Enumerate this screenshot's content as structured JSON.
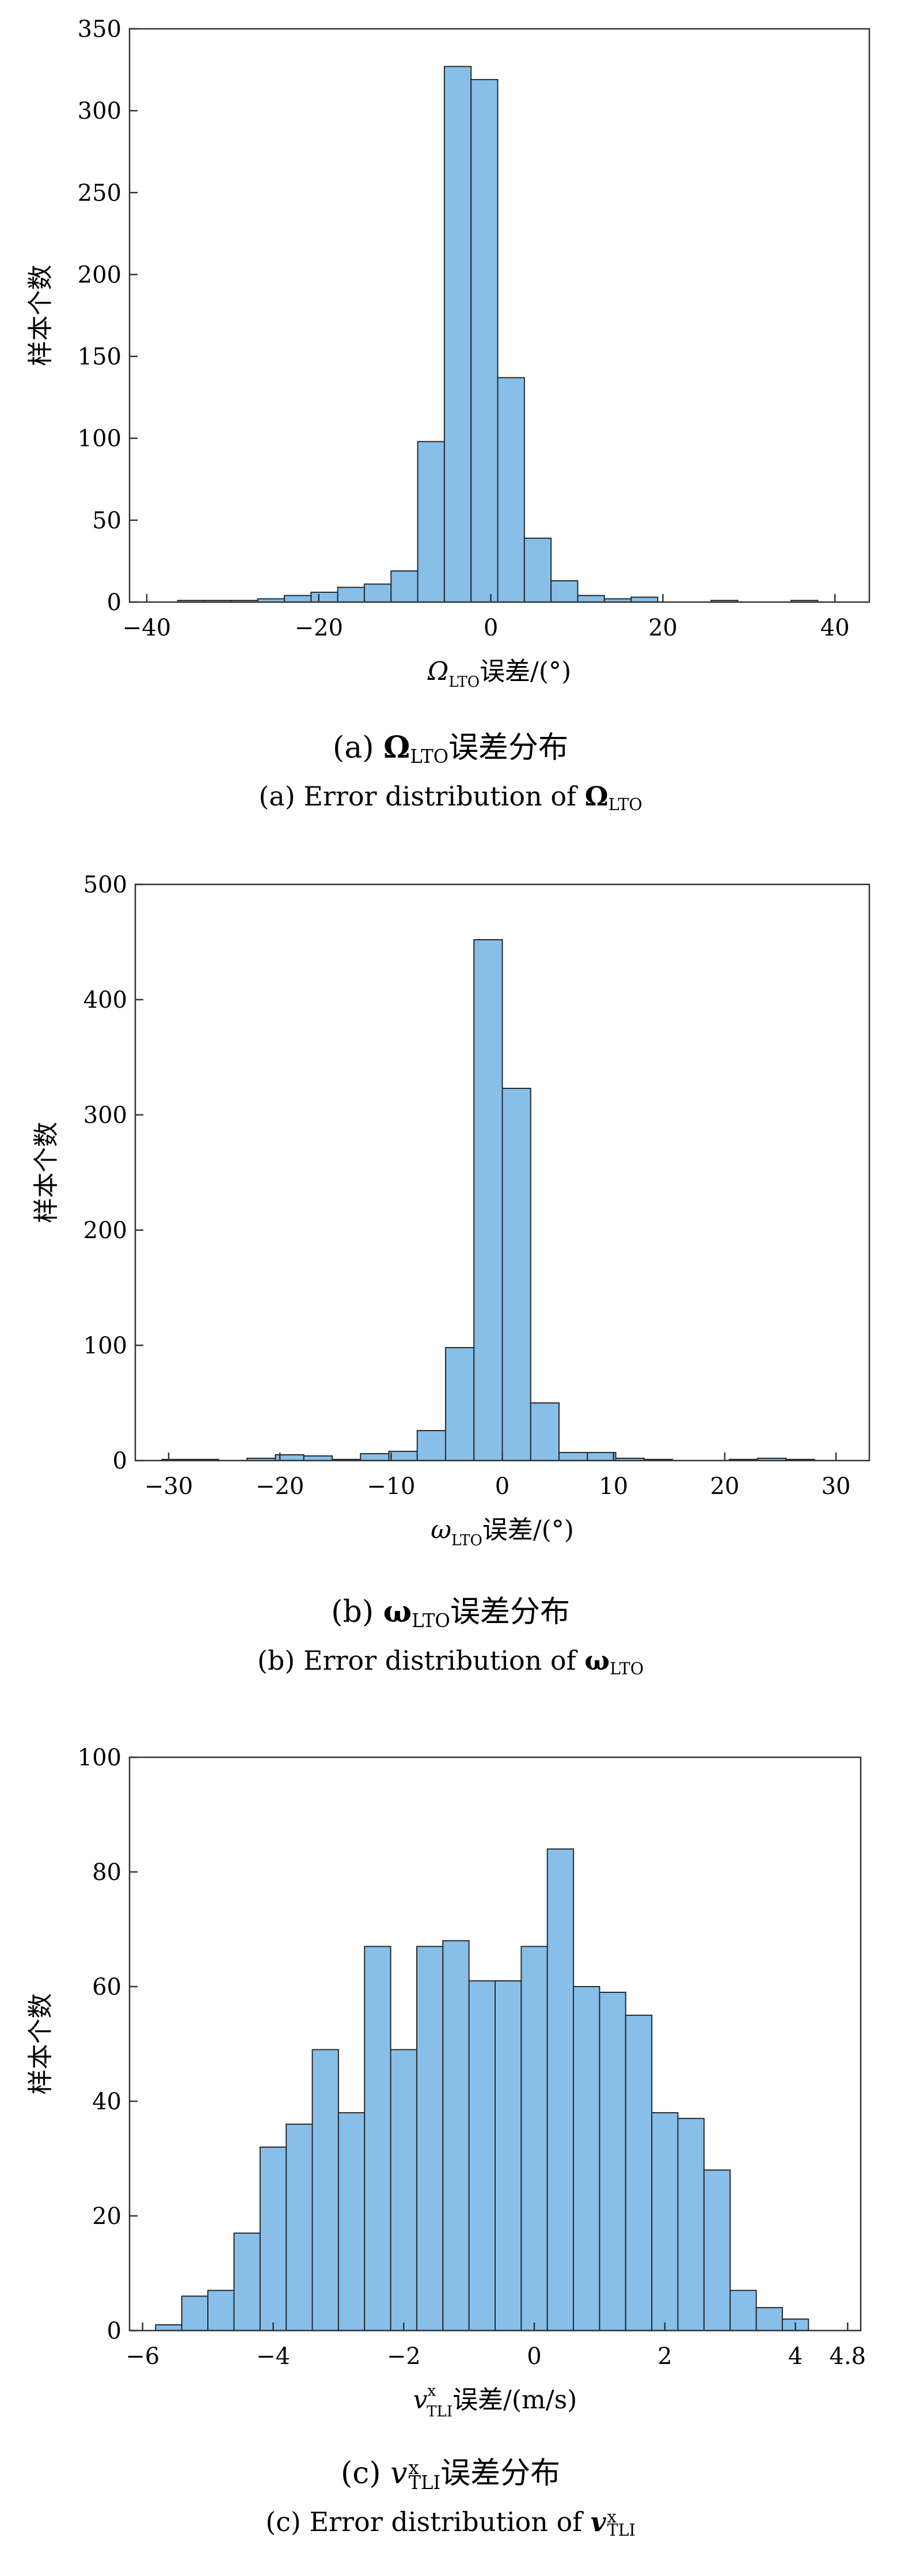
{
  "charts": [
    {
      "caption_zh_prefix": "(a)",
      "caption_zh_symbol": "Ω",
      "caption_zh_sub": "LTO",
      "caption_zh_suffix": "误差分布",
      "caption_en_prefix": "(a) Error distribution of",
      "caption_en_symbol": "Ω",
      "caption_en_sub": "LTO",
      "xlabel_symbol": "Ω",
      "xlabel_sub": "LTO",
      "xlabel_suffix": "误差/(°)",
      "ylabel": "样本个数"
    },
    {
      "caption_zh_prefix": "(b)",
      "caption_zh_symbol": "ω",
      "caption_zh_sub": "LTO",
      "caption_zh_suffix": "误差分布",
      "caption_en_prefix": "(b) Error distribution of",
      "caption_en_symbol": "ω",
      "caption_en_sub": "LTO",
      "xlabel_symbol": "ω",
      "xlabel_sub": "LTO",
      "xlabel_suffix": "误差/(°)",
      "ylabel": "样本个数"
    },
    {
      "caption_zh_prefix": "(c)",
      "caption_zh_symbol": "v",
      "caption_zh_sup": "x",
      "caption_zh_sub": "TLI",
      "caption_zh_suffix": "误差分布",
      "caption_en_prefix": "(c) Error distribution of",
      "caption_en_symbol": "v",
      "caption_en_sup": "x",
      "caption_en_sub": "TLI",
      "xlabel_symbol": "v",
      "xlabel_sup": "x",
      "xlabel_sub": "TLI",
      "xlabel_suffix": "误差/(m/s)",
      "ylabel": "样本个数"
    }
  ],
  "chart_data": [
    {
      "type": "bar",
      "bar_color": "#87bfe9",
      "edge_color": "#2a2a2a",
      "grid": false,
      "xlim": [
        -42,
        44
      ],
      "ylim": [
        0,
        350
      ],
      "xticks": [
        -40,
        -20,
        0,
        20,
        40
      ],
      "xtick_labels": [
        "−40",
        "−20",
        "0",
        "20",
        "40"
      ],
      "yticks": [
        0,
        50,
        100,
        150,
        200,
        250,
        300,
        350
      ],
      "bin_edges": [
        -36.4,
        -33.3,
        -30.2,
        -27.1,
        -24.0,
        -20.9,
        -17.8,
        -14.7,
        -11.6,
        -8.5,
        -5.4,
        -2.3,
        0.8,
        3.9,
        7.0,
        10.1,
        13.2,
        16.3,
        19.4,
        22.5,
        25.6,
        28.7,
        31.8,
        34.9,
        38.0,
        41.1
      ],
      "values": [
        1,
        1,
        1,
        2,
        4,
        6,
        9,
        11,
        19,
        98,
        327,
        319,
        137,
        39,
        13,
        4,
        2,
        3,
        0,
        0,
        1,
        0,
        0,
        1,
        0
      ]
    },
    {
      "type": "bar",
      "bar_color": "#87bfe9",
      "edge_color": "#2a2a2a",
      "grid": false,
      "xlim": [
        -33,
        33
      ],
      "ylim": [
        0,
        500
      ],
      "xticks": [
        -30,
        -20,
        -10,
        0,
        10,
        20,
        30
      ],
      "xtick_labels": [
        "−30",
        "−20",
        "−10",
        "0",
        "10",
        "20",
        "30"
      ],
      "yticks": [
        0,
        100,
        200,
        300,
        400,
        500
      ],
      "bin_edges": [
        -30.6,
        -28.05,
        -25.5,
        -22.95,
        -20.4,
        -17.85,
        -15.3,
        -12.75,
        -10.2,
        -7.65,
        -5.1,
        -2.55,
        0.0,
        2.55,
        5.1,
        7.65,
        10.2,
        12.75,
        15.3,
        17.85,
        20.4,
        22.95,
        25.5,
        28.05,
        30.6
      ],
      "values": [
        1,
        1,
        0,
        2,
        5,
        4,
        1,
        6,
        8,
        26,
        98,
        452,
        323,
        50,
        7,
        7,
        2,
        1,
        0,
        0,
        1,
        2,
        1,
        0
      ]
    },
    {
      "type": "bar",
      "bar_color": "#87bfe9",
      "edge_color": "#2a2a2a",
      "grid": false,
      "xlim": [
        -6.2,
        5.0
      ],
      "ylim": [
        0,
        100
      ],
      "xticks": [
        -6,
        -4,
        -2,
        0,
        2,
        4,
        4.8
      ],
      "xtick_labels": [
        "−6",
        "−4",
        "−2",
        "0",
        "2",
        "4",
        "4.8"
      ],
      "yticks": [
        0,
        20,
        40,
        60,
        80,
        100
      ],
      "bin_edges": [
        -5.8,
        -5.4,
        -5.0,
        -4.6,
        -4.2,
        -3.8,
        -3.4,
        -3.0,
        -2.6,
        -2.2,
        -1.8,
        -1.4,
        -1.0,
        -0.6,
        -0.2,
        0.2,
        0.6,
        1.0,
        1.4,
        1.8,
        2.2,
        2.6,
        3.0,
        3.4,
        3.8,
        4.2,
        4.6,
        5.0
      ],
      "values": [
        1,
        6,
        7,
        17,
        32,
        36,
        49,
        38,
        67,
        49,
        67,
        68,
        61,
        61,
        67,
        84,
        60,
        59,
        55,
        38,
        37,
        28,
        7,
        4,
        2,
        0,
        0
      ]
    }
  ]
}
